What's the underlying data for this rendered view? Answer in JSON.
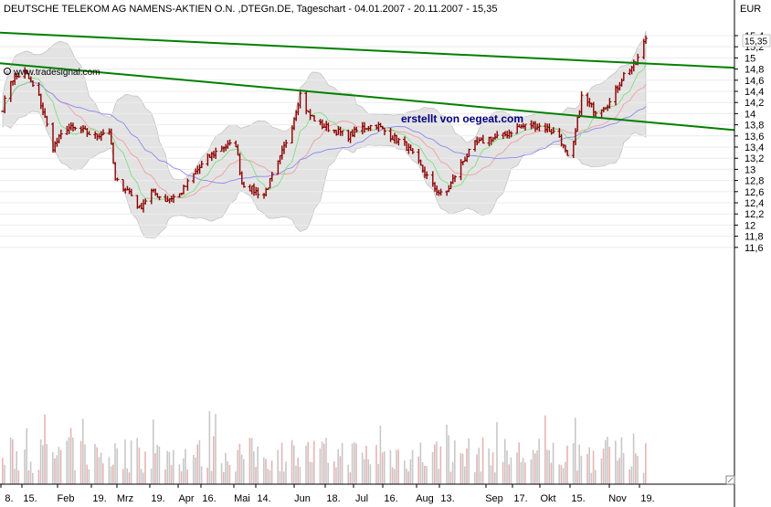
{
  "header": {
    "title": "DEUTSCHE TELEKOM AG NAMENS-AKTIEN O.N. ,DTEGn.DE, Tageschart - 04.01.2007 - 20.11.2007 - 15,35"
  },
  "currency_label": "EUR",
  "copyright_text": "www.tradesignal.com",
  "watermark_text": "erstellt von oegeat.com",
  "colors": {
    "price_bar": "#8b0000",
    "band_fill": "#d9d9d9",
    "upper_trendline": "#008000",
    "ma_fast": "#7fe07f",
    "ma_mid": "#f0a0a0",
    "ma_slow": "#8a8af0",
    "volume": "#c8c8c8",
    "watermark": "#000080"
  },
  "chart_data": {
    "type": "ohlc",
    "ylim": [
      11.5,
      15.5
    ],
    "y_ticks": [
      {
        "label": "15,4",
        "value": 15.4
      },
      {
        "label": "15,2",
        "value": 15.2
      },
      {
        "label": "15",
        "value": 15.0
      },
      {
        "label": "14,8",
        "value": 14.8
      },
      {
        "label": "14,6",
        "value": 14.6
      },
      {
        "label": "14,4",
        "value": 14.4
      },
      {
        "label": "14,2",
        "value": 14.2
      },
      {
        "label": "14",
        "value": 14.0
      },
      {
        "label": "13,8",
        "value": 13.8
      },
      {
        "label": "13,6",
        "value": 13.6
      },
      {
        "label": "13,4",
        "value": 13.4
      },
      {
        "label": "13,2",
        "value": 13.2
      },
      {
        "label": "13",
        "value": 13.0
      },
      {
        "label": "12,8",
        "value": 12.8
      },
      {
        "label": "12,6",
        "value": 12.6
      },
      {
        "label": "12,4",
        "value": 12.4
      },
      {
        "label": "12,2",
        "value": 12.2
      },
      {
        "label": "12",
        "value": 12.0
      },
      {
        "label": "11,8",
        "value": 11.8
      },
      {
        "label": "11,6",
        "value": 11.6
      }
    ],
    "last_price_label": "15,35",
    "last_price": 15.35,
    "x_tick_labels": [
      "8.",
      "15.",
      "Feb",
      "19.",
      "Mrz",
      "19.",
      "Apr",
      "16.",
      "Mai",
      "14.",
      "Jun",
      "18.",
      "Jul",
      "16.",
      "Aug",
      "13.",
      "Sep",
      "17.",
      "Okt",
      "15.",
      "Nov",
      "19."
    ],
    "price_path": [
      {
        "date": "2007-01-04",
        "close": 14.1
      },
      {
        "date": "2007-01-08",
        "close": 14.6
      },
      {
        "date": "2007-01-15",
        "close": 14.75
      },
      {
        "date": "2007-01-22",
        "close": 14.3
      },
      {
        "date": "2007-01-29",
        "close": 13.4
      },
      {
        "date": "2007-02-05",
        "close": 13.75
      },
      {
        "date": "2007-02-12",
        "close": 13.7
      },
      {
        "date": "2007-02-19",
        "close": 13.6
      },
      {
        "date": "2007-02-26",
        "close": 13.7
      },
      {
        "date": "2007-03-01",
        "close": 12.8
      },
      {
        "date": "2007-03-08",
        "close": 12.6
      },
      {
        "date": "2007-03-13",
        "close": 12.3
      },
      {
        "date": "2007-03-19",
        "close": 12.6
      },
      {
        "date": "2007-03-26",
        "close": 12.45
      },
      {
        "date": "2007-04-02",
        "close": 12.55
      },
      {
        "date": "2007-04-10",
        "close": 12.95
      },
      {
        "date": "2007-04-16",
        "close": 13.2
      },
      {
        "date": "2007-04-23",
        "close": 13.4
      },
      {
        "date": "2007-04-30",
        "close": 13.45
      },
      {
        "date": "2007-05-03",
        "close": 12.75
      },
      {
        "date": "2007-05-10",
        "close": 12.6
      },
      {
        "date": "2007-05-14",
        "close": 12.55
      },
      {
        "date": "2007-05-21",
        "close": 13.1
      },
      {
        "date": "2007-05-28",
        "close": 13.8
      },
      {
        "date": "2007-06-01",
        "close": 14.35
      },
      {
        "date": "2007-06-05",
        "close": 14.0
      },
      {
        "date": "2007-06-11",
        "close": 13.8
      },
      {
        "date": "2007-06-18",
        "close": 13.7
      },
      {
        "date": "2007-06-25",
        "close": 13.6
      },
      {
        "date": "2007-07-02",
        "close": 13.75
      },
      {
        "date": "2007-07-09",
        "close": 13.8
      },
      {
        "date": "2007-07-16",
        "close": 13.6
      },
      {
        "date": "2007-07-23",
        "close": 13.45
      },
      {
        "date": "2007-07-30",
        "close": 13.1
      },
      {
        "date": "2007-08-06",
        "close": 12.7
      },
      {
        "date": "2007-08-10",
        "close": 12.55
      },
      {
        "date": "2007-08-13",
        "close": 12.6
      },
      {
        "date": "2007-08-20",
        "close": 13.1
      },
      {
        "date": "2007-08-27",
        "close": 13.45
      },
      {
        "date": "2007-09-03",
        "close": 13.55
      },
      {
        "date": "2007-09-10",
        "close": 13.6
      },
      {
        "date": "2007-09-17",
        "close": 13.75
      },
      {
        "date": "2007-09-24",
        "close": 13.8
      },
      {
        "date": "2007-10-01",
        "close": 13.75
      },
      {
        "date": "2007-10-08",
        "close": 13.6
      },
      {
        "date": "2007-10-12",
        "close": 13.2
      },
      {
        "date": "2007-10-15",
        "close": 13.45
      },
      {
        "date": "2007-10-19",
        "close": 14.3
      },
      {
        "date": "2007-10-26",
        "close": 14.05
      },
      {
        "date": "2007-11-02",
        "close": 14.2
      },
      {
        "date": "2007-11-09",
        "close": 14.7
      },
      {
        "date": "2007-11-15",
        "close": 14.9
      },
      {
        "date": "2007-11-20",
        "close": 15.35
      }
    ],
    "trendlines": [
      {
        "from": {
          "date": "2007-01-04",
          "value": 15.45
        },
        "to": {
          "date": "2007-11-20",
          "value": 14.9
        }
      },
      {
        "from": {
          "date": "2007-01-04",
          "value": 14.9
        },
        "to": {
          "date": "2007-11-20",
          "value": 13.85
        }
      }
    ]
  }
}
